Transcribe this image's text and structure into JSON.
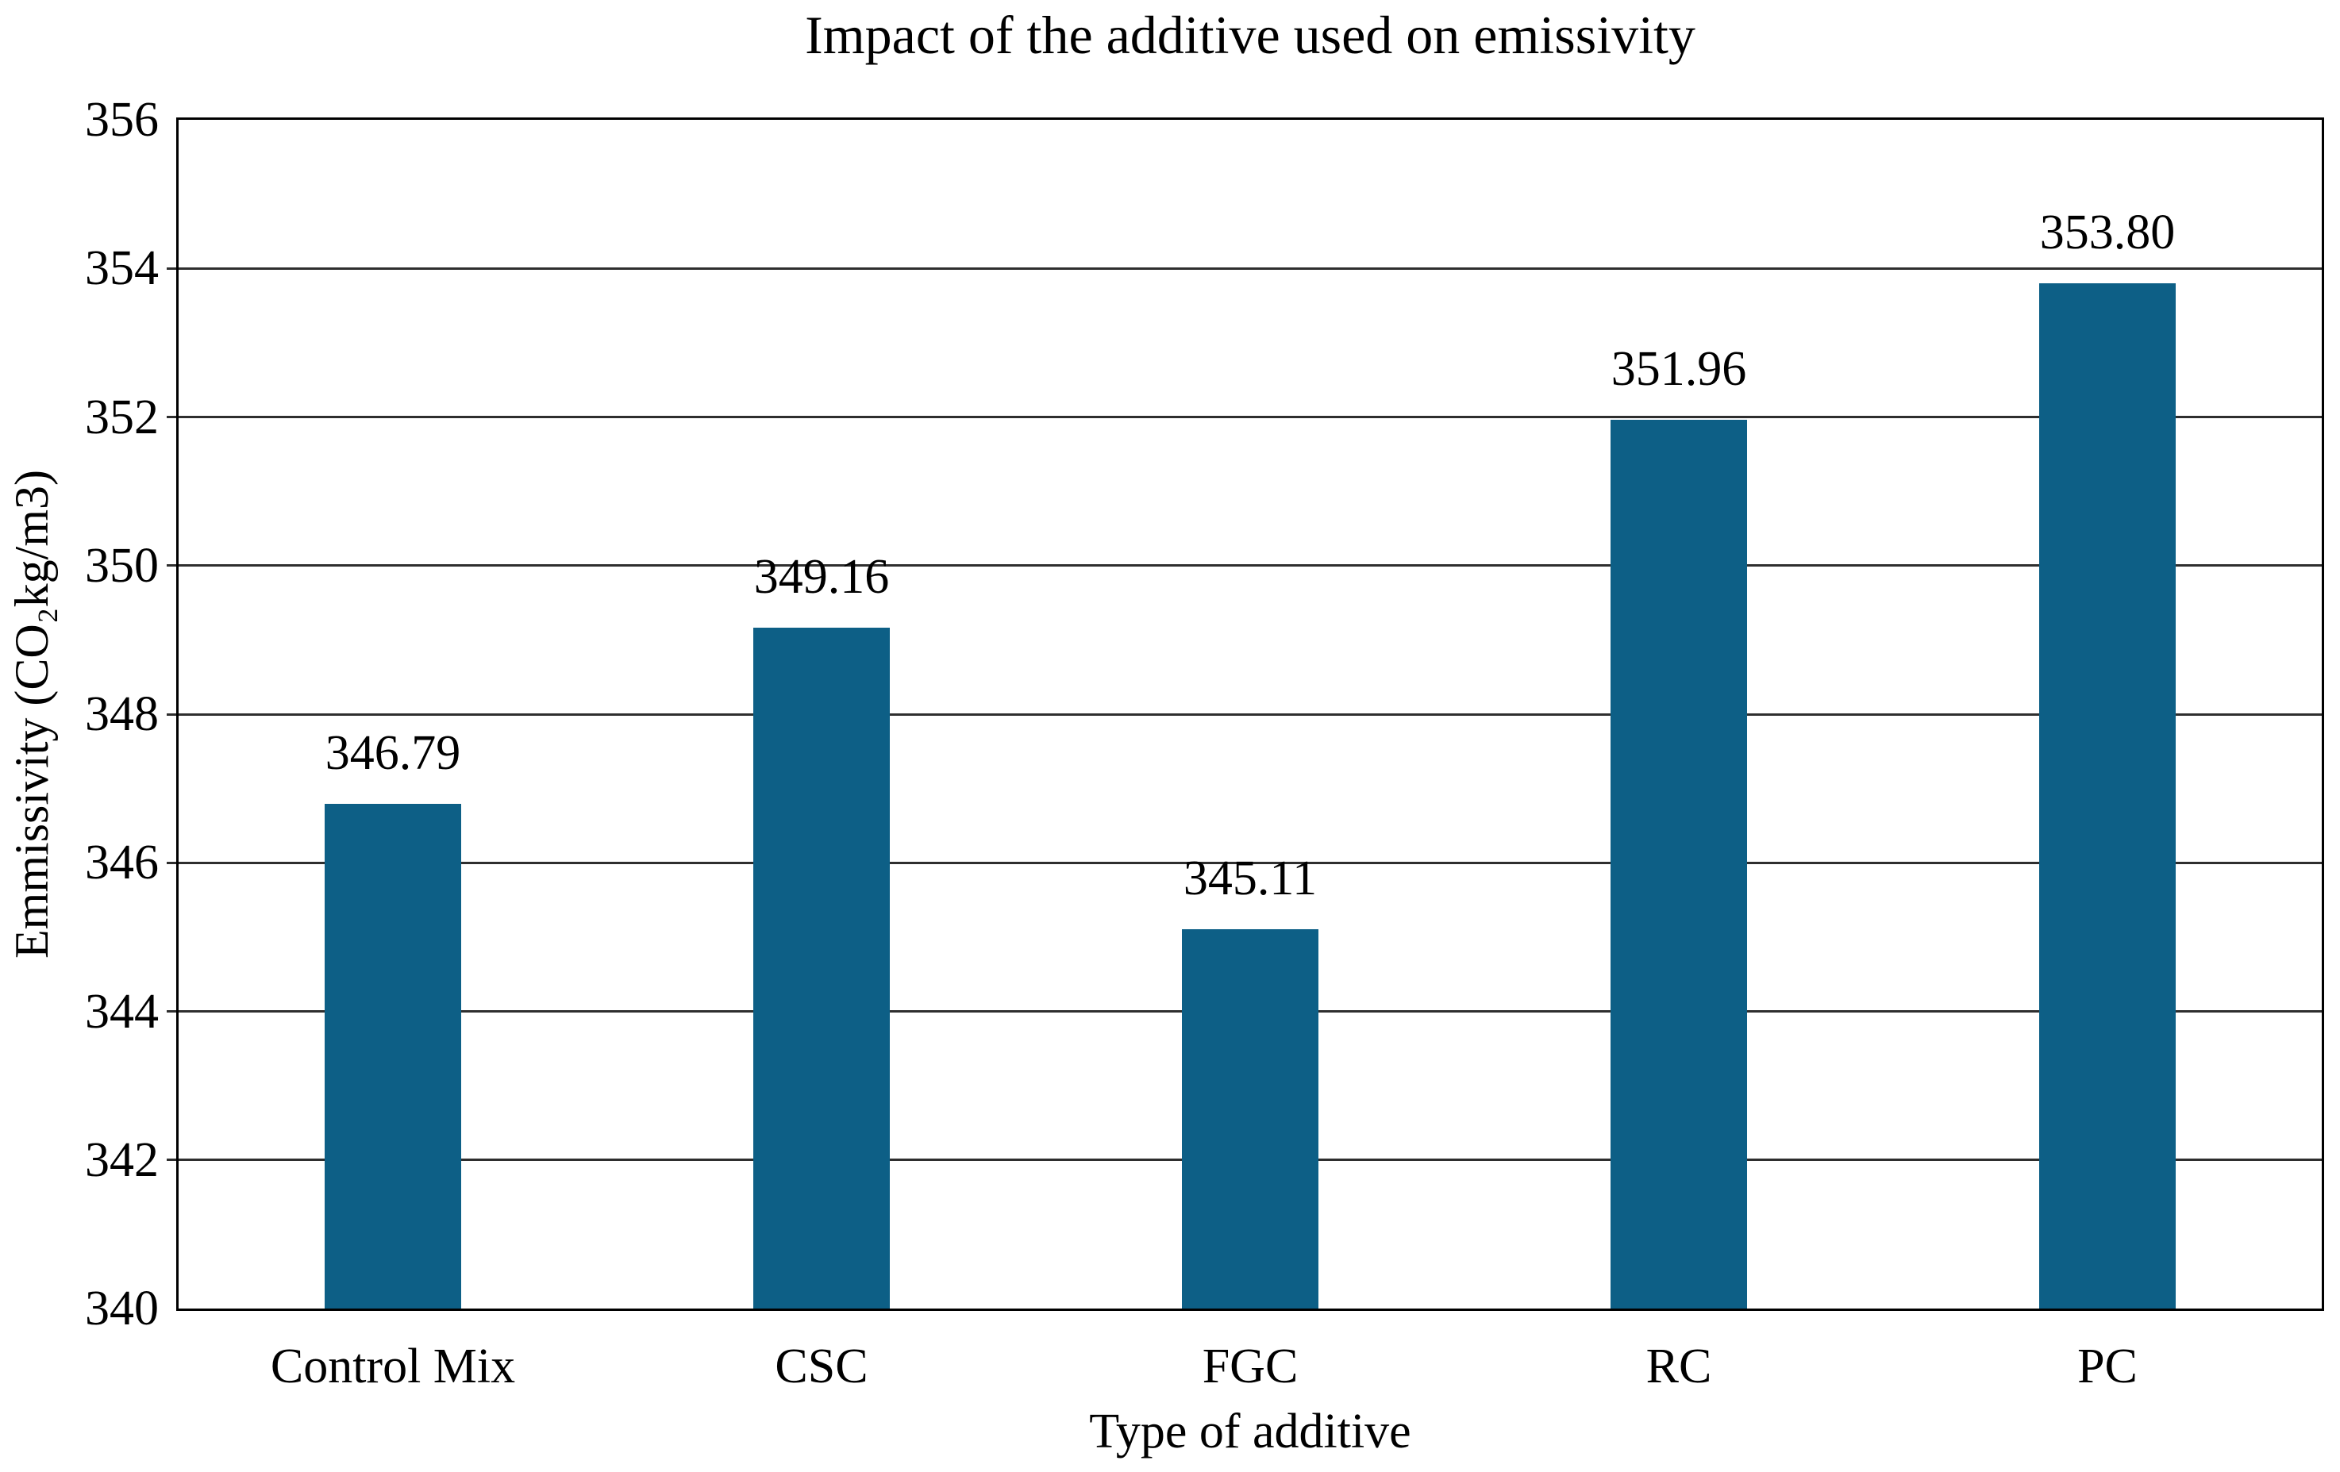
{
  "chart_data": {
    "type": "bar",
    "title": "Impact of the additive used on emissivity",
    "xlabel": "Type of additive",
    "ylabel": "Emmissivity (CO₂kg/m3)",
    "categories": [
      "Control Mix",
      "CSC",
      "FGC",
      "RC",
      "PC"
    ],
    "values": [
      346.79,
      349.16,
      345.11,
      351.96,
      353.8
    ],
    "value_labels": [
      "346.79",
      "349.16",
      "345.11",
      "351.96",
      "353.80"
    ],
    "ylim": [
      340,
      356
    ],
    "ytick_step": 2,
    "yticks": [
      340,
      342,
      344,
      346,
      348,
      350,
      352,
      354,
      356
    ],
    "grid": "horizontal-only",
    "legend_position": "none",
    "plot_border": "full-box",
    "colors": {
      "bar": "#0d5f86",
      "axis": "#000000",
      "gridline": "#2e2e2e",
      "text": "#000000",
      "background": "#ffffff"
    }
  }
}
